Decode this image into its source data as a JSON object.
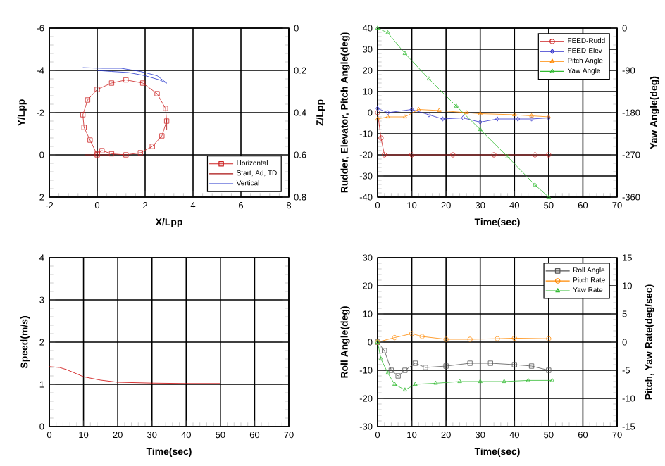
{
  "chart_data": [
    {
      "type": "line",
      "xlabel": "X/Lpp",
      "ylabel": "Y/Lpp",
      "y2label": "Z/Lpp",
      "xlim": [
        -2,
        8
      ],
      "xticks": [
        -2,
        0,
        2,
        4,
        6,
        8
      ],
      "ylim": [
        2,
        -6
      ],
      "yticks": [
        -6,
        -4,
        -2,
        0,
        2
      ],
      "y2lim": [
        0.8,
        0
      ],
      "y2ticks": [
        0,
        0.2,
        0.4,
        0.6,
        0.8
      ],
      "grid": true,
      "legend": "bottom right",
      "series": [
        {
          "name": "Horizontal",
          "color": "#cc2222",
          "marker": "square",
          "x": [
            0,
            -0.3,
            -0.55,
            -0.6,
            -0.4,
            0,
            0.6,
            1.2,
            1.9,
            2.5,
            2.85,
            2.9,
            2.7,
            2.3,
            1.8,
            1.2,
            0.6,
            0.2,
            0
          ],
          "values": [
            0,
            -0.7,
            -1.3,
            -1.9,
            -2.6,
            -3.1,
            -3.4,
            -3.55,
            -3.4,
            -2.9,
            -2.2,
            -1.6,
            -0.9,
            -0.4,
            -0.1,
            0,
            -0.05,
            -0.2,
            -0.05
          ]
        },
        {
          "name": "Start, Ad, TD",
          "color": "#aa1111",
          "x": [
            -0.5,
            0.5,
            null,
            1.1,
            1.9,
            null,
            2.9,
            2.9
          ],
          "values": [
            0,
            0,
            null,
            -3.55,
            -3.55,
            null,
            -1.7,
            -1.2
          ]
        },
        {
          "name": "Vertical",
          "color": "#2233cc",
          "axis": "y2",
          "x": [
            -0.6,
            0.2,
            1.0,
            1.8,
            2.5,
            2.9,
            2.6,
            2.0,
            1.3,
            0.6,
            0.0
          ],
          "values": [
            0.187,
            0.19,
            0.19,
            0.205,
            0.225,
            0.26,
            0.245,
            0.225,
            0.21,
            0.205,
            0.2
          ]
        }
      ]
    },
    {
      "type": "line",
      "xlabel": "Time(sec)",
      "ylabel": "Rudder, Elevator, Pitch Angle(deg)",
      "y2label": "Yaw Angle(deg)",
      "xlim": [
        0,
        70
      ],
      "xticks": [
        0,
        10,
        20,
        30,
        40,
        50,
        60,
        70
      ],
      "ylim": [
        -40,
        40
      ],
      "yticks": [
        -40,
        -30,
        -20,
        -10,
        0,
        10,
        20,
        30,
        40
      ],
      "y2lim": [
        -360,
        0
      ],
      "y2ticks": [
        -360,
        -270,
        -180,
        -90,
        0
      ],
      "grid": true,
      "legend": "top right",
      "series": [
        {
          "name": "FEED-Rudd",
          "color": "#cc2222",
          "marker": "circle",
          "x": [
            0,
            1,
            2,
            10,
            22,
            34,
            46,
            50
          ],
          "values": [
            0,
            -12,
            -20,
            -20,
            -20,
            -20,
            -20,
            -20
          ]
        },
        {
          "name": "FEED-Elev",
          "color": "#3333cc",
          "marker": "diamond",
          "x": [
            0,
            3,
            10,
            15,
            19,
            25,
            30,
            35,
            41,
            45,
            50
          ],
          "values": [
            2,
            0,
            1.5,
            -1,
            -3,
            -2.5,
            -4.5,
            -3,
            -3,
            -3,
            -2.5
          ]
        },
        {
          "name": "Pitch Angle",
          "color": "#ff8800",
          "marker": "triangle",
          "x": [
            0,
            3,
            8,
            12,
            18,
            26,
            30,
            40,
            45,
            50
          ],
          "values": [
            -3,
            -2,
            -2,
            1.5,
            1,
            0,
            -0.5,
            -1,
            -1.5,
            -2
          ]
        },
        {
          "name": "Yaw Angle",
          "color": "#33bb33",
          "marker": "triangle",
          "axis": "y2",
          "x": [
            0,
            3,
            8,
            15,
            23,
            30,
            38,
            46,
            50
          ],
          "values": [
            0,
            -10,
            -54,
            -108,
            -166,
            -216,
            -274,
            -334,
            -360
          ]
        }
      ]
    },
    {
      "type": "line",
      "xlabel": "Time(sec)",
      "ylabel": "Speed(m/s)",
      "xlim": [
        0,
        70
      ],
      "xticks": [
        0,
        10,
        20,
        30,
        40,
        50,
        60,
        70
      ],
      "ylim": [
        0,
        4
      ],
      "yticks": [
        0,
        1,
        2,
        3,
        4
      ],
      "grid": true,
      "series": [
        {
          "color": "#cc0000",
          "x": [
            0,
            3,
            5,
            8,
            10,
            15,
            20,
            25,
            30,
            40,
            50
          ],
          "values": [
            1.42,
            1.4,
            1.35,
            1.25,
            1.18,
            1.1,
            1.05,
            1.04,
            1.03,
            1.02,
            1.02
          ]
        }
      ]
    },
    {
      "type": "line",
      "xlabel": "Time(sec)",
      "ylabel": "Roll Angle(deg)",
      "y2label": "Pitch, Yaw Rate(deg/sec)",
      "xlim": [
        0,
        70
      ],
      "xticks": [
        0,
        10,
        20,
        30,
        40,
        50,
        60,
        70
      ],
      "ylim": [
        -30,
        30
      ],
      "yticks": [
        -30,
        -20,
        -10,
        0,
        10,
        20,
        30
      ],
      "y2lim": [
        -15,
        15
      ],
      "y2ticks": [
        -15,
        -10,
        -5,
        0,
        5,
        10,
        15
      ],
      "grid": true,
      "legend": "top right",
      "series": [
        {
          "name": "Roll Angle",
          "color": "#555555",
          "marker": "square",
          "x": [
            0,
            2,
            4,
            6,
            8,
            11,
            14,
            20,
            27,
            33,
            40,
            45,
            50
          ],
          "values": [
            0,
            -3,
            -10,
            -12,
            -10,
            -7.5,
            -9,
            -8.5,
            -7.5,
            -7.5,
            -8,
            -8.5,
            -10
          ]
        },
        {
          "name": "Pitch Rate",
          "color": "#ff8800",
          "marker": "circle",
          "axis": "y2",
          "x": [
            0,
            5,
            10,
            13,
            20,
            27,
            35,
            40,
            50
          ],
          "values": [
            0,
            0.8,
            1.5,
            1,
            0.5,
            0.5,
            0.6,
            0.7,
            0.6
          ]
        },
        {
          "name": "Yaw Rate",
          "color": "#33bb33",
          "marker": "triangle",
          "axis": "y2",
          "x": [
            0,
            1,
            3,
            5,
            8,
            11,
            17,
            24,
            30,
            37,
            44,
            51
          ],
          "values": [
            0,
            -3,
            -5.5,
            -7.5,
            -8.5,
            -7.5,
            -7.3,
            -7,
            -7,
            -7,
            -6.8,
            -6.8
          ]
        }
      ]
    }
  ]
}
